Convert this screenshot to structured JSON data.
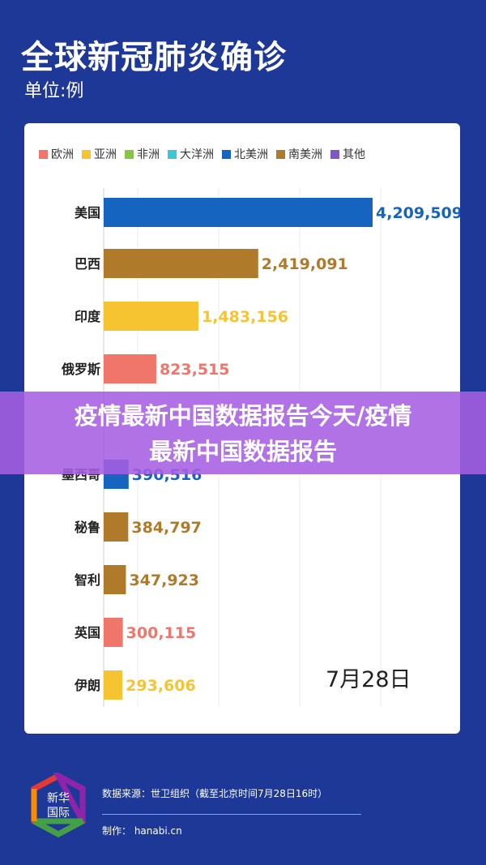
{
  "header": {
    "title": "全球新冠肺炎确诊",
    "unit": "单位:例"
  },
  "chart_data": {
    "type": "bar",
    "orientation": "horizontal",
    "title": "全球新冠肺炎确诊",
    "ylabel": "单位:例",
    "legend": [
      {
        "name": "欧洲",
        "color": "#f0766b"
      },
      {
        "name": "亚洲",
        "color": "#f6c430"
      },
      {
        "name": "非洲",
        "color": "#8bc34a"
      },
      {
        "name": "大洋洲",
        "color": "#3cc6d6"
      },
      {
        "name": "北美洲",
        "color": "#1565c0"
      },
      {
        "name": "南美洲",
        "color": "#b07a2b"
      },
      {
        "name": "其他",
        "color": "#7e57c2"
      }
    ],
    "categories": [
      "美国",
      "巴西",
      "印度",
      "俄罗斯",
      "墨西哥",
      "秘鲁",
      "智利",
      "英国",
      "伊朗"
    ],
    "labels": [
      "4,209,509",
      "2,419,091",
      "1,483,156",
      "823,515",
      "390,516",
      "384,797",
      "347,923",
      "300,115",
      "293,606"
    ],
    "values": [
      4209509,
      2419091,
      1483156,
      823515,
      390516,
      384797,
      347923,
      300115,
      293606
    ],
    "regions": [
      "北美洲",
      "南美洲",
      "亚洲",
      "欧洲",
      "北美洲",
      "南美洲",
      "南美洲",
      "欧洲",
      "亚洲"
    ],
    "date": "7月28日"
  },
  "banner": {
    "line1": "疫情最新中国数据报告今天/疫情",
    "line2": "最新中国数据报告"
  },
  "footer": {
    "logo_text": "新华国际",
    "source": "数据来源：世卫组织（截至北京时间7月28日16时）",
    "maker": "制作： hanabi.cn"
  }
}
